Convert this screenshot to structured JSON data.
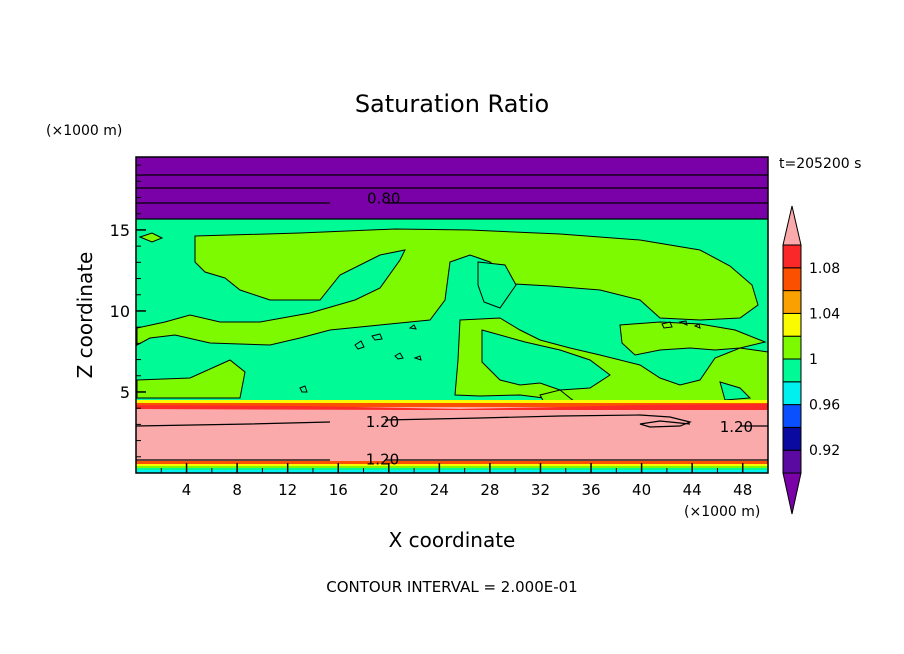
{
  "chart_data": {
    "type": "heatmap",
    "title": "Saturation Ratio",
    "xlabel": "X coordinate",
    "ylabel": "Z coordinate",
    "x_unit": "(×1000 m)",
    "y_unit": "(×1000 m)",
    "time_label": "t=205200 s",
    "footer": "CONTOUR INTERVAL = 2.000E-01",
    "xlim": [
      0,
      50
    ],
    "ylim": [
      0,
      19.5
    ],
    "x_ticks": [
      "4",
      "8",
      "12",
      "16",
      "20",
      "24",
      "28",
      "32",
      "36",
      "40",
      "44",
      "48"
    ],
    "y_ticks": [
      "5",
      "10",
      "15"
    ],
    "contour_labels": [
      {
        "text": "0.80",
        "x": 19.6,
        "z": 17.0
      },
      {
        "text": "1.20",
        "x": 19.5,
        "z": 3.2
      },
      {
        "text": "1.20",
        "x": 47.5,
        "z": 2.9
      },
      {
        "text": "1.20",
        "x": 19.5,
        "z": 0.9
      }
    ],
    "colorbar": {
      "labels": [
        "1.08",
        "1.04",
        "1",
        "0.96",
        "0.92"
      ],
      "bins": [
        {
          "color": "#5a0aa0"
        },
        {
          "color": "#0a0aa0"
        },
        {
          "color": "#0a50ff"
        },
        {
          "color": "#00f0f0"
        },
        {
          "color": "#00fa96"
        },
        {
          "color": "#7dfa00"
        },
        {
          "color": "#fafa00"
        },
        {
          "color": "#faa000"
        },
        {
          "color": "#fa5000"
        },
        {
          "color": "#fa2828"
        }
      ],
      "under_color": "#7a00a8",
      "over_color": "#faaaaa"
    },
    "regions": [
      {
        "name": "upper-dry-layer",
        "color": "#7a00a8",
        "z": [
          16.0,
          19.5
        ]
      },
      {
        "name": "mid-moist-layer",
        "color": "#00fa96",
        "z": [
          4.3,
          16.0
        ]
      },
      {
        "name": "supersaturated-layer",
        "color": "#faaaaa",
        "z": [
          0.9,
          4.3
        ]
      }
    ]
  }
}
